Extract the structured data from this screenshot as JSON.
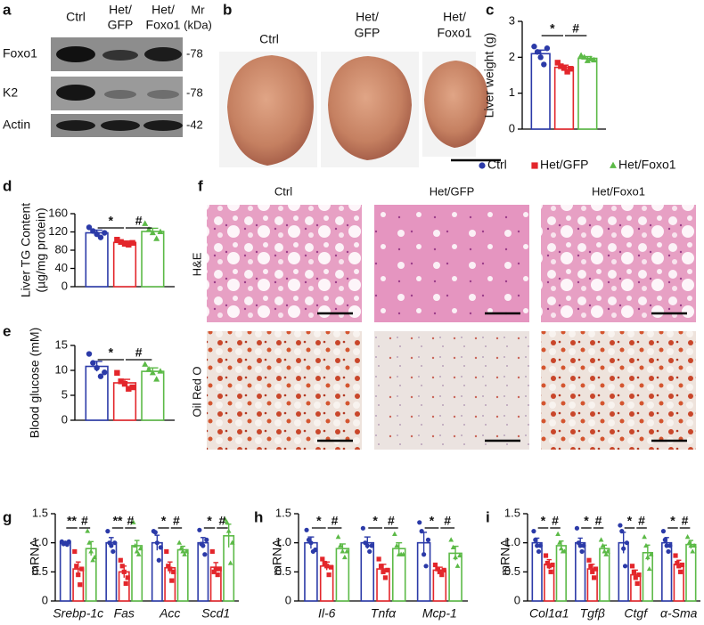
{
  "western_blot": {
    "label": "a",
    "lanes": [
      [
        "Ctrl"
      ],
      [
        "Het/",
        "GFP"
      ],
      [
        "Het/",
        "Foxo1"
      ]
    ],
    "mr": [
      "Mr",
      "(kDa)"
    ],
    "rows": [
      {
        "name": "Foxo1",
        "mr": "-78"
      },
      {
        "name": "K2",
        "mr": "-78"
      },
      {
        "name": "Actin",
        "mr": "-42"
      }
    ]
  },
  "liver_photos": {
    "label": "b",
    "groups": [
      [
        "Ctrl"
      ],
      [
        "Het/",
        "GFP"
      ],
      [
        "Het/",
        "Foxo1"
      ]
    ]
  },
  "histology": {
    "label": "f",
    "columns": [
      "Ctrl",
      "Het/GFP",
      "Het/Foxo1"
    ],
    "rows": [
      "H&E",
      "Oil Red O"
    ]
  },
  "chart_data": [
    {
      "type": "bar",
      "label": "c",
      "y_label": "Liver weight (g)",
      "categories": [
        null
      ],
      "ylim": [
        0,
        3
      ],
      "yticks": [
        0,
        1,
        2,
        3
      ],
      "series": [
        {
          "name": "Ctrl",
          "color": "#2b3aa8",
          "marker": "circle",
          "values": [
            2.1
          ],
          "errors": [
            0.1
          ],
          "points": [
            [
              2.3,
              2.15,
              2.0,
              1.8,
              2.25
            ]
          ]
        },
        {
          "name": "Het/GFP",
          "color": "#e3262b",
          "marker": "square",
          "values": [
            1.72
          ],
          "errors": [
            0.06
          ],
          "points": [
            [
              1.85,
              1.75,
              1.7,
              1.6,
              1.68
            ]
          ]
        },
        {
          "name": "Het/Foxo1",
          "color": "#5cba47",
          "marker": "triangle",
          "values": [
            1.97
          ],
          "errors": [
            0.05
          ],
          "points": [
            [
              2.05,
              2.0,
              1.9,
              1.95,
              1.92
            ]
          ]
        }
      ],
      "annotations": [
        {
          "text": "*",
          "category": 0,
          "between": [
            0,
            1
          ]
        },
        {
          "text": "#",
          "category": 0,
          "between": [
            1,
            2
          ]
        }
      ],
      "legend": "bottom"
    },
    {
      "type": "bar",
      "label": "d",
      "y_label": [
        "Liver TG Content",
        "(µg/mg protein)"
      ],
      "categories": [
        null
      ],
      "ylim": [
        0,
        160
      ],
      "yticks": [
        0,
        40,
        80,
        120,
        160
      ],
      "series": [
        {
          "color": "#2b3aa8",
          "marker": "circle",
          "values": [
            118
          ],
          "errors": [
            6
          ],
          "points": [
            [
              130,
              122,
              115,
              108,
              118
            ]
          ]
        },
        {
          "color": "#e3262b",
          "marker": "square",
          "values": [
            97
          ],
          "errors": [
            3
          ],
          "points": [
            [
              103,
              98,
              94,
              92,
              96
            ]
          ]
        },
        {
          "color": "#5cba47",
          "marker": "triangle",
          "values": [
            121
          ],
          "errors": [
            7
          ],
          "points": [
            [
              138,
              125,
              118,
              105,
              120
            ]
          ]
        }
      ],
      "annotations": [
        {
          "text": "*",
          "category": 0,
          "between": [
            0,
            1
          ]
        },
        {
          "text": "#",
          "category": 0,
          "between": [
            1,
            2
          ]
        }
      ]
    },
    {
      "type": "bar",
      "label": "e",
      "y_label": "Blood glucose (mM)",
      "categories": [
        null
      ],
      "ylim": [
        0,
        15
      ],
      "yticks": [
        0,
        5,
        10,
        15
      ],
      "series": [
        {
          "color": "#2b3aa8",
          "marker": "circle",
          "values": [
            10.8
          ],
          "errors": [
            1
          ],
          "points": [
            [
              13.3,
              11.5,
              10.5,
              8.8,
              9.6
            ]
          ]
        },
        {
          "color": "#e3262b",
          "marker": "square",
          "values": [
            7.5
          ],
          "errors": [
            0.7
          ],
          "points": [
            [
              9.5,
              7.8,
              7.3,
              6.3,
              6.6
            ]
          ]
        },
        {
          "color": "#5cba47",
          "marker": "triangle",
          "values": [
            9.8
          ],
          "errors": [
            0.7
          ],
          "points": [
            [
              11.2,
              10.2,
              9.5,
              8.2,
              9.8
            ]
          ]
        }
      ],
      "annotations": [
        {
          "text": "*",
          "category": 0,
          "between": [
            0,
            1
          ]
        },
        {
          "text": "#",
          "category": 0,
          "between": [
            1,
            2
          ]
        }
      ]
    },
    {
      "type": "bar",
      "label": "g",
      "y_label": "mRNA",
      "categories": [
        "Srebp-1c",
        "Fas",
        "Acc",
        "Scd1"
      ],
      "ylim": [
        0,
        1.5
      ],
      "yticks": [
        0,
        0.5,
        {
          "value": 1,
          "label": "1.0"
        },
        1.5
      ],
      "series": [
        {
          "color": "#2b3aa8",
          "marker": "circle",
          "values": [
            1.0,
            1.0,
            1.0,
            1.0
          ],
          "errors": [
            0.02,
            0.09,
            0.13,
            0.09
          ],
          "points": [
            [
              1.02,
              0.98,
              1.0,
              0.97,
              1.02
            ],
            [
              1.2,
              1.0,
              0.95,
              0.85,
              1.0
            ],
            [
              1.2,
              1.18,
              1.0,
              0.7,
              0.92
            ],
            [
              1.22,
              0.98,
              0.95,
              0.8,
              1.05
            ]
          ]
        },
        {
          "color": "#e3262b",
          "marker": "square",
          "values": [
            0.55,
            0.5,
            0.57,
            0.58
          ],
          "errors": [
            0.12,
            0.1,
            0.1,
            0.08
          ],
          "points": [
            [
              0.85,
              0.6,
              0.45,
              0.28,
              0.55
            ],
            [
              0.7,
              0.6,
              0.5,
              0.3,
              0.4
            ],
            [
              0.85,
              0.6,
              0.55,
              0.35,
              0.5
            ],
            [
              0.85,
              0.5,
              0.55,
              0.45,
              0.55
            ]
          ]
        },
        {
          "color": "#5cba47",
          "marker": "triangle",
          "values": [
            0.9,
            0.95,
            0.88,
            1.12
          ],
          "errors": [
            0.12,
            0.09,
            0.06,
            0.2
          ],
          "points": [
            [
              1.2,
              1.0,
              0.85,
              0.7,
              0.75
            ],
            [
              1.35,
              0.95,
              0.85,
              0.8,
              0.9
            ],
            [
              1.0,
              0.9,
              0.85,
              0.8,
              0.85
            ],
            [
              1.4,
              1.35,
              1.2,
              0.65,
              1.0
            ]
          ]
        }
      ],
      "annotations": [
        {
          "text": "**",
          "category": 0,
          "between": [
            0,
            1
          ]
        },
        {
          "text": "#",
          "category": 0,
          "between": [
            1,
            2
          ]
        },
        {
          "text": "**",
          "category": 1,
          "between": [
            0,
            1
          ]
        },
        {
          "text": "#",
          "category": 1,
          "between": [
            1,
            2
          ]
        },
        {
          "text": "*",
          "category": 2,
          "between": [
            0,
            1
          ]
        },
        {
          "text": "#",
          "category": 2,
          "between": [
            1,
            2
          ]
        },
        {
          "text": "*",
          "category": 3,
          "between": [
            0,
            1
          ]
        },
        {
          "text": "#",
          "category": 3,
          "between": [
            1,
            2
          ]
        }
      ]
    },
    {
      "type": "bar",
      "label": "h",
      "y_label": "mRNA",
      "categories": [
        "Il-6",
        "Tnfα",
        "Mcp-1"
      ],
      "ylim": [
        0,
        1.5
      ],
      "yticks": [
        0,
        0.5,
        {
          "value": 1,
          "label": "1.0"
        },
        1.5
      ],
      "series": [
        {
          "color": "#2b3aa8",
          "marker": "circle",
          "values": [
            1.0,
            1.0,
            1.0
          ],
          "errors": [
            0.1,
            0.1,
            0.18
          ],
          "points": [
            [
              1.22,
              1.05,
              1.0,
              0.85,
              0.88
            ],
            [
              1.25,
              1.0,
              0.95,
              0.85,
              0.95
            ],
            [
              1.35,
              1.2,
              0.8,
              0.6,
              1.05
            ]
          ]
        },
        {
          "color": "#e3262b",
          "marker": "square",
          "values": [
            0.6,
            0.55,
            0.53
          ],
          "errors": [
            0.07,
            0.08,
            0.05
          ],
          "points": [
            [
              0.72,
              0.65,
              0.6,
              0.45,
              0.58
            ],
            [
              0.72,
              0.6,
              0.5,
              0.4,
              0.53
            ],
            [
              0.62,
              0.55,
              0.5,
              0.45,
              0.53
            ]
          ]
        },
        {
          "color": "#5cba47",
          "marker": "triangle",
          "values": [
            0.9,
            0.9,
            0.82
          ],
          "errors": [
            0.08,
            0.1,
            0.12
          ],
          "points": [
            [
              1.1,
              0.95,
              0.85,
              0.75,
              0.85
            ],
            [
              1.15,
              0.95,
              0.8,
              0.8,
              0.8
            ],
            [
              1.05,
              0.92,
              0.75,
              0.6,
              0.78
            ]
          ]
        }
      ],
      "annotations": [
        {
          "text": "*",
          "category": 0,
          "between": [
            0,
            1
          ]
        },
        {
          "text": "#",
          "category": 0,
          "between": [
            1,
            2
          ]
        },
        {
          "text": "*",
          "category": 1,
          "between": [
            0,
            1
          ]
        },
        {
          "text": "#",
          "category": 1,
          "between": [
            1,
            2
          ]
        },
        {
          "text": "*",
          "category": 2,
          "between": [
            0,
            1
          ]
        },
        {
          "text": "#",
          "category": 2,
          "between": [
            1,
            2
          ]
        }
      ]
    },
    {
      "type": "bar",
      "label": "i",
      "y_label": "mRNA",
      "categories": [
        "Col1α1",
        "Tgfβ",
        "Ctgf",
        "α-Sma"
      ],
      "ylim": [
        0,
        1.5
      ],
      "yticks": [
        0,
        0.5,
        {
          "value": 1,
          "label": "1.0"
        },
        1.5
      ],
      "series": [
        {
          "color": "#2b3aa8",
          "marker": "circle",
          "values": [
            1.0,
            1.0,
            1.0,
            1.0
          ],
          "errors": [
            0.08,
            0.08,
            0.18,
            0.09
          ],
          "points": [
            [
              1.2,
              1.05,
              0.95,
              0.85,
              0.95
            ],
            [
              1.25,
              1.0,
              0.95,
              0.85,
              0.95
            ],
            [
              1.3,
              1.2,
              0.9,
              0.6,
              1.0
            ],
            [
              1.2,
              1.05,
              0.95,
              0.85,
              0.95
            ]
          ]
        },
        {
          "color": "#e3262b",
          "marker": "square",
          "values": [
            0.63,
            0.55,
            0.45,
            0.63
          ],
          "errors": [
            0.08,
            0.08,
            0.08,
            0.07
          ],
          "points": [
            [
              0.78,
              0.65,
              0.6,
              0.5,
              0.62
            ],
            [
              0.7,
              0.6,
              0.5,
              0.4,
              0.55
            ],
            [
              0.6,
              0.5,
              0.4,
              0.3,
              0.45
            ],
            [
              0.78,
              0.65,
              0.6,
              0.5,
              0.62
            ]
          ]
        },
        {
          "color": "#5cba47",
          "marker": "triangle",
          "values": [
            0.95,
            0.9,
            0.83,
            0.97
          ],
          "errors": [
            0.08,
            0.06,
            0.13,
            0.07
          ],
          "points": [
            [
              1.15,
              1.0,
              0.9,
              0.85,
              0.85
            ],
            [
              1.05,
              0.95,
              0.85,
              0.8,
              0.85
            ],
            [
              1.1,
              0.95,
              0.75,
              0.55,
              0.8
            ],
            [
              1.1,
              1.0,
              0.95,
              0.85,
              0.95
            ]
          ]
        }
      ],
      "annotations": [
        {
          "text": "*",
          "category": 0,
          "between": [
            0,
            1
          ]
        },
        {
          "text": "#",
          "category": 0,
          "between": [
            1,
            2
          ]
        },
        {
          "text": "*",
          "category": 1,
          "between": [
            0,
            1
          ]
        },
        {
          "text": "#",
          "category": 1,
          "between": [
            1,
            2
          ]
        },
        {
          "text": "*",
          "category": 2,
          "between": [
            0,
            1
          ]
        },
        {
          "text": "#",
          "category": 2,
          "between": [
            1,
            2
          ]
        },
        {
          "text": "*",
          "category": 3,
          "between": [
            0,
            1
          ]
        },
        {
          "text": "#",
          "category": 3,
          "between": [
            1,
            2
          ]
        }
      ]
    }
  ]
}
